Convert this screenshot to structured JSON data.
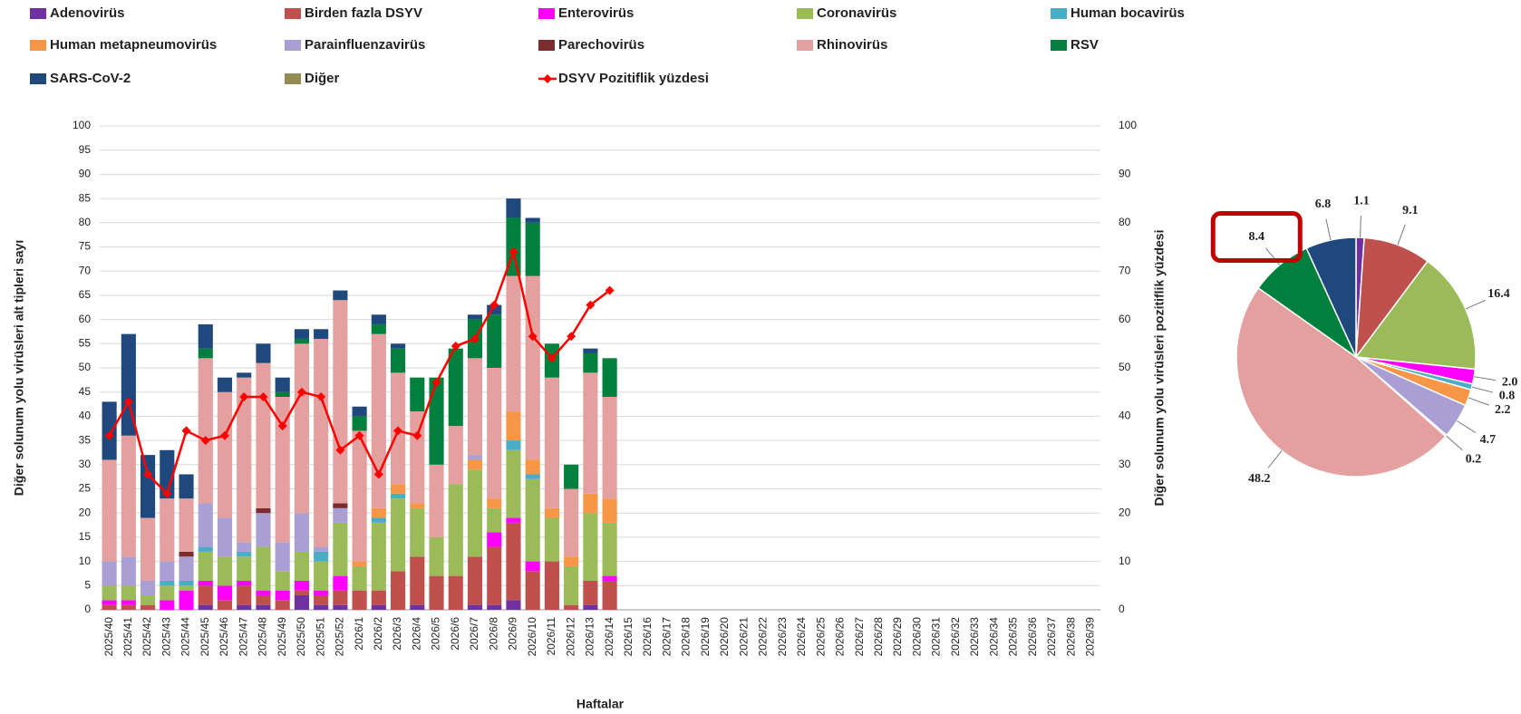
{
  "chart_data": [
    {
      "type": "bar",
      "stacked": true,
      "y_label": "Diğer solunum yolu virüsleri alt tipleri sayı",
      "y2_label": "Diğer solunum yolu virüsleri pozitiflik yüzdesi",
      "x_label": "Haftalar",
      "categories": [
        "2025/40",
        "2025/41",
        "2025/42",
        "2025/43",
        "2025/44",
        "2025/45",
        "2025/46",
        "2025/47",
        "2025/48",
        "2025/49",
        "2025/50",
        "2025/51",
        "2025/52",
        "2026/1",
        "2026/2",
        "2026/3",
        "2026/4",
        "2026/5",
        "2026/6",
        "2026/7",
        "2026/8",
        "2026/9",
        "2026/10",
        "2026/11",
        "2026/12",
        "2026/13",
        "2026/14",
        "2026/15",
        "2026/16",
        "2026/17",
        "2026/18",
        "2026/19",
        "2026/20",
        "2026/21",
        "2026/22",
        "2026/23",
        "2026/24",
        "2026/25",
        "2026/26",
        "2026/27",
        "2026/28",
        "2026/29",
        "2026/30",
        "2026/31",
        "2026/32",
        "2026/33",
        "2026/34",
        "2026/35",
        "2026/36",
        "2026/37",
        "2026/38",
        "2026/39"
      ],
      "ylim": [
        0,
        100
      ],
      "yticks": [
        0,
        5,
        10,
        15,
        20,
        25,
        30,
        35,
        40,
        45,
        50,
        55,
        60,
        65,
        70,
        75,
        80,
        85,
        90,
        95,
        100
      ],
      "y2lim": [
        0,
        100
      ],
      "y2ticks": [
        0,
        10,
        20,
        30,
        40,
        50,
        60,
        70,
        80,
        90,
        100
      ],
      "grid": true,
      "series": [
        {
          "name": "Adenovirüs",
          "color": "#7030a0",
          "values": [
            0,
            0,
            0,
            0,
            0,
            1,
            0,
            1,
            1,
            0,
            3,
            1,
            1,
            0,
            1,
            0,
            1,
            0,
            0,
            1,
            1,
            2,
            0,
            0,
            0,
            1,
            0,
            null,
            null,
            null,
            null,
            null,
            null,
            null,
            null,
            null,
            null,
            null,
            null,
            null,
            null,
            null,
            null,
            null,
            null,
            null,
            null,
            null,
            null,
            null,
            null,
            null
          ]
        },
        {
          "name": "Birden fazla DSYV",
          "color": "#c0504d",
          "values": [
            1,
            1,
            1,
            0,
            0,
            4,
            2,
            4,
            2,
            2,
            1,
            2,
            3,
            4,
            3,
            8,
            10,
            7,
            7,
            10,
            12,
            16,
            8,
            10,
            1,
            5,
            6,
            null,
            null,
            null,
            null,
            null,
            null,
            null,
            null,
            null,
            null,
            null,
            null,
            null,
            null,
            null,
            null,
            null,
            null,
            null,
            null,
            null,
            null,
            null,
            null,
            null
          ]
        },
        {
          "name": "Enterovirüs",
          "color": "#ff00ff",
          "values": [
            1,
            1,
            0,
            2,
            4,
            1,
            3,
            1,
            1,
            2,
            2,
            1,
            3,
            0,
            0,
            0,
            0,
            0,
            0,
            0,
            3,
            1,
            2,
            0,
            0,
            0,
            1,
            null,
            null,
            null,
            null,
            null,
            null,
            null,
            null,
            null,
            null,
            null,
            null,
            null,
            null,
            null,
            null,
            null,
            null,
            null,
            null,
            null,
            null,
            null,
            null,
            null
          ]
        },
        {
          "name": "Coronavirüs",
          "color": "#9bbb59",
          "values": [
            3,
            3,
            2,
            3,
            1,
            6,
            6,
            5,
            9,
            4,
            6,
            6,
            11,
            5,
            14,
            15,
            10,
            8,
            19,
            18,
            5,
            14,
            17,
            9,
            8,
            14,
            11,
            null,
            null,
            null,
            null,
            null,
            null,
            null,
            null,
            null,
            null,
            null,
            null,
            null,
            null,
            null,
            null,
            null,
            null,
            null,
            null,
            null,
            null,
            null,
            null,
            null
          ]
        },
        {
          "name": "Human bocavirüs",
          "color": "#4bacc6",
          "values": [
            0,
            0,
            0,
            1,
            1,
            1,
            0,
            1,
            0,
            0,
            0,
            2,
            0,
            0,
            1,
            1,
            0,
            0,
            0,
            0,
            0,
            2,
            1,
            0,
            0,
            0,
            0,
            null,
            null,
            null,
            null,
            null,
            null,
            null,
            null,
            null,
            null,
            null,
            null,
            null,
            null,
            null,
            null,
            null,
            null,
            null,
            null,
            null,
            null,
            null,
            null,
            null
          ]
        },
        {
          "name": "Human metapneumovirüs",
          "color": "#f79646",
          "values": [
            0,
            0,
            0,
            0,
            0,
            0,
            0,
            0,
            0,
            0,
            0,
            0,
            0,
            1,
            2,
            2,
            1,
            0,
            0,
            2,
            2,
            6,
            3,
            2,
            2,
            4,
            5,
            null,
            null,
            null,
            null,
            null,
            null,
            null,
            null,
            null,
            null,
            null,
            null,
            null,
            null,
            null,
            null,
            null,
            null,
            null,
            null,
            null,
            null,
            null,
            null,
            null
          ]
        },
        {
          "name": "Parainfluenzavirüs",
          "color": "#a99fd4",
          "values": [
            5,
            6,
            3,
            4,
            5,
            9,
            8,
            2,
            7,
            6,
            8,
            1,
            3,
            0,
            0,
            0,
            0,
            0,
            0,
            1,
            0,
            0,
            0,
            0,
            0,
            0,
            0,
            null,
            null,
            null,
            null,
            null,
            null,
            null,
            null,
            null,
            null,
            null,
            null,
            null,
            null,
            null,
            null,
            null,
            null,
            null,
            null,
            null,
            null,
            null,
            null,
            null
          ]
        },
        {
          "name": "Parechovirüs",
          "color": "#7b2c2c",
          "values": [
            0,
            0,
            0,
            0,
            1,
            0,
            0,
            0,
            1,
            0,
            0,
            0,
            1,
            0,
            0,
            0,
            0,
            0,
            0,
            0,
            0,
            0,
            0,
            0,
            0,
            0,
            0,
            null,
            null,
            null,
            null,
            null,
            null,
            null,
            null,
            null,
            null,
            null,
            null,
            null,
            null,
            null,
            null,
            null,
            null,
            null,
            null,
            null,
            null,
            null,
            null,
            null
          ]
        },
        {
          "name": "Rhinovirüs",
          "color": "#e4a09e",
          "values": [
            21,
            25,
            13,
            13,
            11,
            30,
            26,
            34,
            30,
            30,
            35,
            43,
            42,
            27,
            36,
            23,
            19,
            15,
            12,
            20,
            27,
            28,
            38,
            27,
            14,
            25,
            21,
            null,
            null,
            null,
            null,
            null,
            null,
            null,
            null,
            null,
            null,
            null,
            null,
            null,
            null,
            null,
            null,
            null,
            null,
            null,
            null,
            null,
            null,
            null,
            null,
            null
          ]
        },
        {
          "name": "RSV",
          "color": "#00803c",
          "values": [
            0,
            0,
            0,
            0,
            0,
            2,
            0,
            0,
            0,
            1,
            1,
            0,
            0,
            3,
            2,
            5,
            7,
            18,
            16,
            8,
            11,
            12,
            11,
            7,
            5,
            4,
            8,
            null,
            null,
            null,
            null,
            null,
            null,
            null,
            null,
            null,
            null,
            null,
            null,
            null,
            null,
            null,
            null,
            null,
            null,
            null,
            null,
            null,
            null,
            null,
            null,
            null
          ]
        },
        {
          "name": "SARS-CoV-2",
          "color": "#1f497d",
          "values": [
            12,
            21,
            13,
            10,
            5,
            5,
            3,
            1,
            4,
            3,
            2,
            2,
            2,
            2,
            2,
            1,
            0,
            0,
            0,
            1,
            2,
            4,
            1,
            0,
            0,
            1,
            0,
            null,
            null,
            null,
            null,
            null,
            null,
            null,
            null,
            null,
            null,
            null,
            null,
            null,
            null,
            null,
            null,
            null,
            null,
            null,
            null,
            null,
            null,
            null,
            null,
            null
          ]
        },
        {
          "name": "Diğer",
          "color": "#948a54",
          "values": [
            0,
            0,
            0,
            0,
            0,
            0,
            0,
            0,
            0,
            0,
            0,
            0,
            0,
            0,
            0,
            0,
            0,
            0,
            0,
            0,
            0,
            0,
            0,
            0,
            0,
            0,
            0,
            null,
            null,
            null,
            null,
            null,
            null,
            null,
            null,
            null,
            null,
            null,
            null,
            null,
            null,
            null,
            null,
            null,
            null,
            null,
            null,
            null,
            null,
            null,
            null,
            null
          ]
        },
        {
          "name": "DSYV Pozitiflik yüzdesi",
          "color": "#ff0000",
          "type": "line",
          "axis": "y2",
          "values": [
            36,
            43,
            28,
            24,
            37,
            35,
            36,
            44,
            44,
            38,
            45,
            44,
            33,
            36,
            28,
            37,
            36,
            47,
            54.5,
            56,
            63,
            74,
            56.5,
            52,
            56.5,
            63,
            66,
            null,
            null,
            null,
            null,
            null,
            null,
            null,
            null,
            null,
            null,
            null,
            null,
            null,
            null,
            null,
            null,
            null,
            null,
            null,
            null,
            null,
            null,
            null,
            null,
            null
          ]
        }
      ]
    },
    {
      "type": "pie",
      "values": [
        1.1,
        9.1,
        16.4,
        2.0,
        0.8,
        2.2,
        4.7,
        0.2,
        48.2,
        8.4,
        6.8
      ],
      "value_labels": [
        "1.1",
        "9.1",
        "16.4",
        "2.0",
        "0.8",
        "2.2",
        "4.7",
        "0.2",
        "48.2",
        "8.4",
        "6.8"
      ],
      "colors": [
        "#7030a0",
        "#c0504d",
        "#9bbb59",
        "#ff00ff",
        "#4bacc6",
        "#f79646",
        "#a99fd4",
        "#7b2c2c",
        "#e4a09e",
        "#00803c",
        "#1f497d"
      ],
      "highlight": 9
    }
  ]
}
